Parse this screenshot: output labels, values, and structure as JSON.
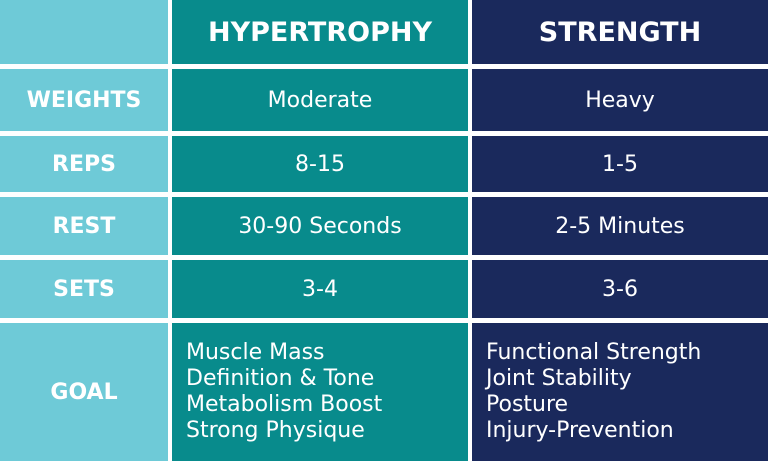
{
  "table": {
    "headers": [
      "HYPERTROPHY",
      "STRENGTH"
    ],
    "rows": [
      [
        "WEIGHTS",
        "Moderate",
        "Heavy"
      ],
      [
        "REPS",
        "8-15",
        "1-5"
      ],
      [
        "REST",
        "30-90 Seconds",
        "2-5 Minutes"
      ],
      [
        "SETS",
        "3-4",
        "3-6"
      ],
      [
        "GOAL",
        [
          "Muscle Mass",
          "Definition & Tone",
          "Metabolism Boost",
          "Strong Physique"
        ],
        [
          "Functional Strength",
          "Joint Stability",
          "Posture",
          "Injury-Prevention"
        ]
      ]
    ]
  }
}
